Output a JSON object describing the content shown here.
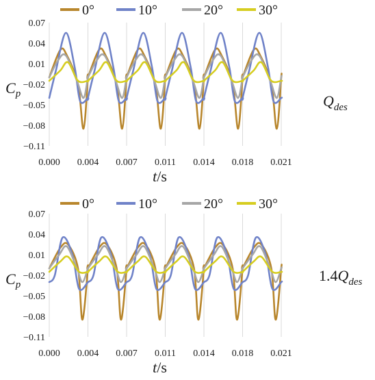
{
  "chart_data": [
    {
      "type": "line",
      "condition_label": "Q_des",
      "condition_label_parts": [
        "Q",
        "des"
      ],
      "xlabel_parts": [
        "t",
        "/s"
      ],
      "ylabel_parts": [
        "C",
        "p"
      ],
      "xlim": [
        0,
        0.021
      ],
      "ylim": [
        -0.11,
        0.07
      ],
      "x_ticks": [
        "0.000",
        "0.004",
        "0.007",
        "0.011",
        "0.014",
        "0.018",
        "0.021"
      ],
      "y_ticks": [
        "0.07",
        "0.04",
        "0.01",
        "−0.02",
        "−0.05",
        "−0.08",
        "−0.11"
      ],
      "grid": "vertical",
      "legend_position": "top",
      "period": 0.0035,
      "series": [
        {
          "name": "0°",
          "color": "#b8862c",
          "phase": [
            0.0,
            0.001,
            0.0016,
            0.0026,
            0.0031,
            0.0035
          ],
          "values": [
            -0.01,
            0.03,
            0.022,
            -0.02,
            -0.085,
            -0.01
          ]
        },
        {
          "name": "10°",
          "color": "#6f82c8",
          "phase": [
            0.0,
            0.0006,
            0.0015,
            0.0023,
            0.0028,
            0.0035
          ],
          "values": [
            -0.04,
            0.0,
            0.055,
            0.005,
            -0.045,
            -0.04
          ]
        },
        {
          "name": "20°",
          "color": "#a6a6a6",
          "phase": [
            0.0,
            0.0008,
            0.0015,
            0.0025,
            0.0031,
            0.0035
          ],
          "values": [
            -0.01,
            0.015,
            0.022,
            -0.015,
            -0.04,
            -0.01
          ]
        },
        {
          "name": "30°",
          "color": "#d6cd20",
          "phase": [
            0.0,
            0.001,
            0.0017,
            0.0026,
            0.0035
          ],
          "values": [
            -0.015,
            0.0,
            0.012,
            -0.015,
            -0.015
          ]
        }
      ]
    },
    {
      "type": "line",
      "condition_label": "1.4Q_des",
      "condition_label_parts": [
        "1.4Q",
        "des"
      ],
      "xlabel_parts": [
        "t",
        "/s"
      ],
      "ylabel_parts": [
        "C",
        "p"
      ],
      "xlim": [
        0,
        0.021
      ],
      "ylim": [
        -0.11,
        0.07
      ],
      "x_ticks": [
        "0.000",
        "0.004",
        "0.007",
        "0.011",
        "0.014",
        "0.018",
        "0.021"
      ],
      "y_ticks": [
        "0.07",
        "0.04",
        "0.01",
        "−0.02",
        "−0.05",
        "−0.08",
        "−0.11"
      ],
      "grid": "vertical",
      "legend_position": "top",
      "period": 0.0035,
      "series": [
        {
          "name": "0°",
          "color": "#b8862c",
          "phase": [
            0.0,
            0.001,
            0.0017,
            0.0026,
            0.003,
            0.0035
          ],
          "values": [
            -0.01,
            0.02,
            0.025,
            -0.01,
            -0.085,
            -0.01
          ]
        },
        {
          "name": "10°",
          "color": "#6f82c8",
          "phase": [
            0.0,
            0.0005,
            0.0012,
            0.0021,
            0.0027,
            0.0035
          ],
          "values": [
            -0.03,
            -0.02,
            0.035,
            0.01,
            -0.04,
            -0.03
          ]
        },
        {
          "name": "20°",
          "color": "#a6a6a6",
          "phase": [
            0.0,
            0.0009,
            0.0016,
            0.0025,
            0.003,
            0.0035
          ],
          "values": [
            -0.01,
            0.01,
            0.022,
            -0.01,
            -0.03,
            -0.01
          ]
        },
        {
          "name": "30°",
          "color": "#d6cd20",
          "phase": [
            0.0,
            0.001,
            0.0017,
            0.0027,
            0.0035
          ],
          "values": [
            -0.015,
            0.0,
            0.007,
            -0.015,
            -0.015
          ]
        }
      ]
    }
  ]
}
